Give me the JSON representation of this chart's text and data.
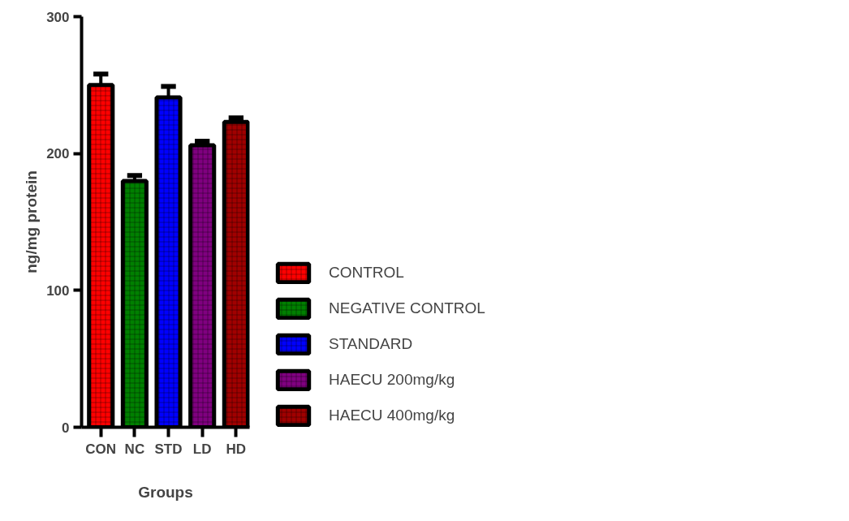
{
  "chart_data": {
    "type": "bar",
    "xlabel": "Groups",
    "ylabel": "ng/mg protein",
    "categories": [
      "CON",
      "NC",
      "STD",
      "LD",
      "HD"
    ],
    "series": [
      {
        "name": "CONTROL",
        "color": "#ff0000",
        "values": [
          250,
          null,
          null,
          null,
          null
        ],
        "errors": [
          [
            250,
            258
          ],
          null,
          null,
          null,
          null
        ]
      },
      {
        "name": "NEGATIVE CONTROL",
        "color": "#008000",
        "values": [
          null,
          180,
          null,
          null,
          null
        ],
        "errors": [
          null,
          [
            180,
            184
          ],
          null,
          null,
          null
        ]
      },
      {
        "name": "STANDARD",
        "color": "#0000ff",
        "values": [
          null,
          null,
          241,
          null,
          null
        ],
        "errors": [
          null,
          null,
          [
            241,
            249
          ],
          null,
          null
        ]
      },
      {
        "name": "HAECU 200mg/kg",
        "color": "#800080",
        "values": [
          null,
          null,
          null,
          206,
          null
        ],
        "errors": [
          null,
          null,
          null,
          [
            206,
            209
          ],
          null
        ]
      },
      {
        "name": "HAECU 400mg/kg",
        "color": "#a00000",
        "values": [
          null,
          null,
          null,
          null,
          223
        ],
        "errors": [
          null,
          null,
          null,
          null,
          [
            223,
            226
          ]
        ]
      }
    ],
    "ylim": [
      0,
      300
    ],
    "yticks": [
      0,
      100,
      200,
      300
    ],
    "grid": false,
    "legend": "right"
  }
}
